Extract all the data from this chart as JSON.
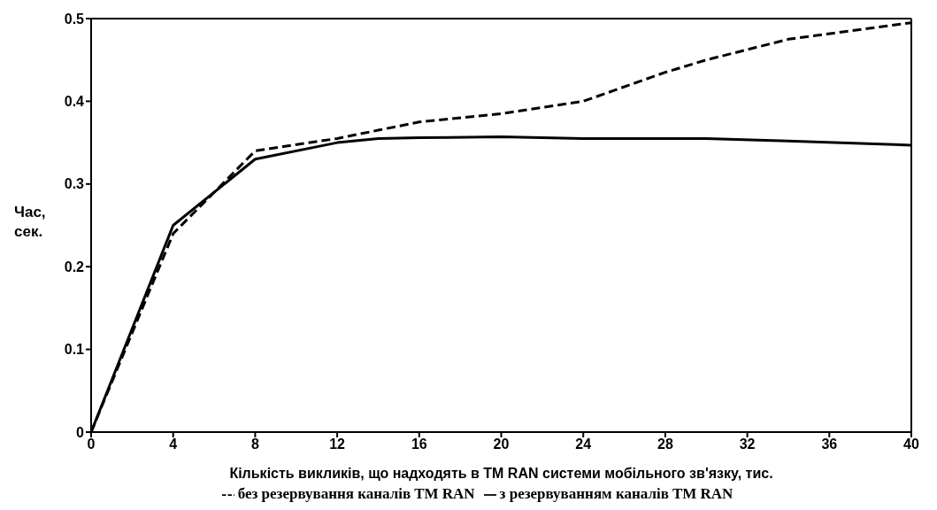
{
  "chart_data": {
    "type": "line",
    "xlabel": "Кількість викликів,  що   надходять в ТМ RAN  системи мобільного зв'язку, тис.",
    "ylabel": "Час,\nсек.",
    "x": [
      0,
      4,
      8,
      12,
      14,
      16,
      20,
      24,
      28,
      30,
      34,
      40
    ],
    "series": [
      {
        "name": "з резервуванням каналів ТМ RAN",
        "color": "#000000",
        "line_style": "solid",
        "values": [
          0,
          0.25,
          0.33,
          0.35,
          0.355,
          0.356,
          0.357,
          0.355,
          0.355,
          0.355,
          0.352,
          0.347
        ]
      },
      {
        "name": "без резервування каналів ТМ RAN",
        "color": "#000000",
        "line_style": "dashed",
        "values": [
          0,
          0.24,
          0.34,
          0.355,
          0.365,
          0.375,
          0.385,
          0.4,
          0.435,
          0.45,
          0.475,
          0.495
        ]
      }
    ],
    "xlim": [
      0,
      40
    ],
    "xticks": [
      0,
      4,
      8,
      12,
      16,
      20,
      24,
      28,
      32,
      36,
      40
    ],
    "ylim": [
      0,
      0.5
    ],
    "yticks": [
      0,
      0.1,
      0.2,
      0.3,
      0.4,
      0.5
    ],
    "grid": false,
    "legend": "bottom",
    "marker": "none"
  }
}
